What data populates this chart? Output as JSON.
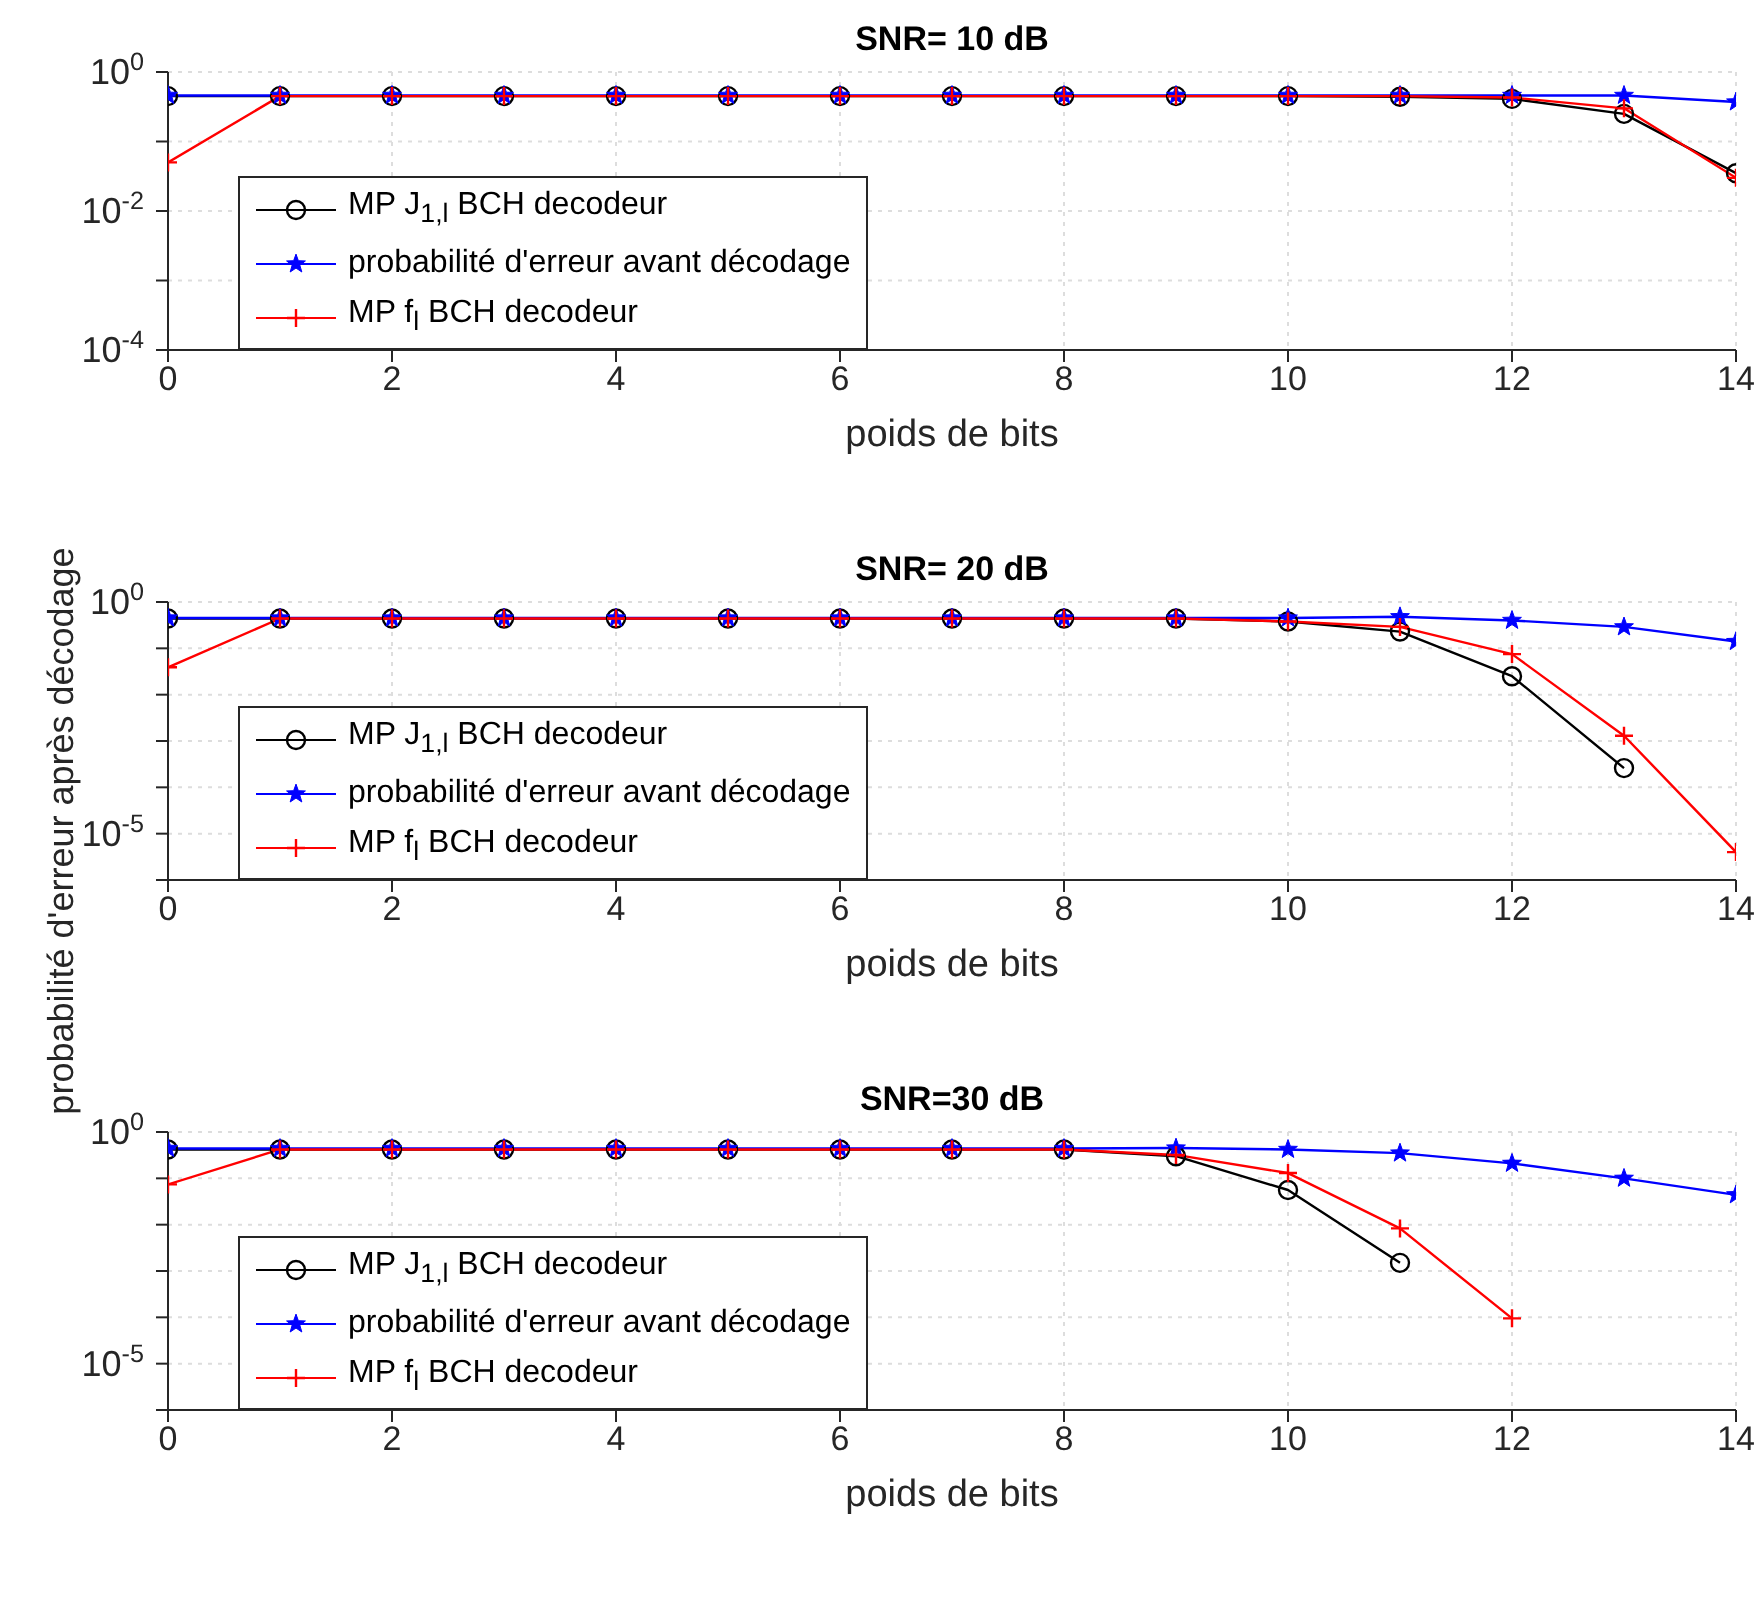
{
  "chart_data": [
    {
      "type": "line",
      "title": "SNR= 10 dB",
      "xlabel": "poids de bits",
      "x": [
        0,
        1,
        2,
        3,
        4,
        5,
        6,
        7,
        8,
        9,
        10,
        11,
        12,
        13,
        14
      ],
      "log": true,
      "grid": true,
      "legend": "bottom left",
      "line_style": "solid",
      "xlim": [
        0,
        14
      ],
      "xticks": [
        0,
        2,
        4,
        6,
        8,
        10,
        12,
        14
      ],
      "ylim": [
        0.0001,
        1
      ],
      "yticks": [
        {
          "value": 0.0001,
          "label": "10$^{-4}$"
        },
        {
          "value": 0.001,
          "label": null
        },
        {
          "value": 0.01,
          "label": "10$^{-2}$"
        },
        {
          "value": 0.1,
          "label": null
        },
        {
          "value": 1,
          "label": "10$^{0}$"
        }
      ],
      "series": [
        {
          "name": "MP J$_{1,l}$ BCH decodeur",
          "color": "#000000",
          "marker": "circle",
          "values": [
            0.45,
            0.45,
            0.45,
            0.45,
            0.45,
            0.45,
            0.45,
            0.45,
            0.45,
            0.45,
            0.45,
            0.44,
            0.41,
            0.25,
            0.035
          ]
        },
        {
          "name": "probabilité d'erreur avant décodage",
          "color": "#0000ff",
          "marker": "star",
          "values": [
            0.46,
            0.46,
            0.46,
            0.46,
            0.46,
            0.46,
            0.46,
            0.46,
            0.46,
            0.46,
            0.46,
            0.46,
            0.46,
            0.46,
            0.37
          ]
        },
        {
          "name": "MP f$_{l}$ BCH decodeur",
          "color": "#ff0000",
          "marker": "cross",
          "values": [
            0.05,
            0.45,
            0.45,
            0.45,
            0.45,
            0.45,
            0.45,
            0.45,
            0.45,
            0.45,
            0.45,
            0.45,
            0.43,
            0.3,
            0.03
          ]
        }
      ]
    },
    {
      "type": "line",
      "title": "SNR= 20 dB",
      "xlabel": "poids de bits",
      "ylabel": "probabilité d'erreur après décodage",
      "x": [
        0,
        1,
        2,
        3,
        4,
        5,
        6,
        7,
        8,
        9,
        10,
        11,
        12,
        13,
        14
      ],
      "log": true,
      "grid": true,
      "legend": "bottom left",
      "line_style": "solid",
      "xlim": [
        0,
        14
      ],
      "xticks": [
        0,
        2,
        4,
        6,
        8,
        10,
        12,
        14
      ],
      "ylim": [
        1e-06,
        1
      ],
      "yticks": [
        {
          "value": 1e-06,
          "label": null
        },
        {
          "value": 1e-05,
          "label": "10$^{-5}$"
        },
        {
          "value": 0.0001,
          "label": null
        },
        {
          "value": 0.001,
          "label": null
        },
        {
          "value": 0.01,
          "label": null
        },
        {
          "value": 0.1,
          "label": null
        },
        {
          "value": 1,
          "label": "10$^{0}$"
        }
      ],
      "series": [
        {
          "name": "MP J$_{1,l}$ BCH decodeur",
          "color": "#000000",
          "marker": "circle",
          "values": [
            0.44,
            0.44,
            0.44,
            0.44,
            0.44,
            0.44,
            0.44,
            0.44,
            0.44,
            0.44,
            0.38,
            0.23,
            0.025,
            0.00026,
            null
          ]
        },
        {
          "name": "probabilité d'erreur avant décodage",
          "color": "#0000ff",
          "marker": "star",
          "values": [
            0.45,
            0.45,
            0.45,
            0.45,
            0.45,
            0.45,
            0.45,
            0.45,
            0.45,
            0.45,
            0.45,
            0.48,
            0.4,
            0.29,
            0.14
          ]
        },
        {
          "name": "MP f$_{l}$ BCH decodeur",
          "color": "#ff0000",
          "marker": "cross",
          "values": [
            0.039,
            0.44,
            0.44,
            0.44,
            0.44,
            0.44,
            0.44,
            0.44,
            0.44,
            0.44,
            0.38,
            0.29,
            0.075,
            0.0013,
            4e-06
          ]
        }
      ]
    },
    {
      "type": "line",
      "title": "SNR=30 dB",
      "xlabel": "poids de bits",
      "x": [
        0,
        1,
        2,
        3,
        4,
        5,
        6,
        7,
        8,
        9,
        10,
        11,
        12,
        13,
        14
      ],
      "log": true,
      "grid": true,
      "legend": "bottom left",
      "line_style": "solid",
      "xlim": [
        0,
        14
      ],
      "xticks": [
        0,
        2,
        4,
        6,
        8,
        10,
        12,
        14
      ],
      "ylim": [
        1e-06,
        1
      ],
      "yticks": [
        {
          "value": 1e-06,
          "label": null
        },
        {
          "value": 1e-05,
          "label": "10$^{-5}$"
        },
        {
          "value": 0.0001,
          "label": null
        },
        {
          "value": 0.001,
          "label": null
        },
        {
          "value": 0.01,
          "label": null
        },
        {
          "value": 0.1,
          "label": null
        },
        {
          "value": 1,
          "label": "10$^{0}$"
        }
      ],
      "series": [
        {
          "name": "MP J$_{1,l}$ BCH decodeur",
          "color": "#000000",
          "marker": "circle",
          "values": [
            0.42,
            0.42,
            0.42,
            0.42,
            0.42,
            0.42,
            0.42,
            0.42,
            0.42,
            0.3,
            0.056,
            0.0015,
            null,
            null,
            null
          ]
        },
        {
          "name": "probabilité d'erreur avant décodage",
          "color": "#0000ff",
          "marker": "star",
          "values": [
            0.44,
            0.44,
            0.44,
            0.44,
            0.44,
            0.44,
            0.44,
            0.44,
            0.44,
            0.45,
            0.42,
            0.35,
            0.21,
            0.1,
            0.044
          ]
        },
        {
          "name": "MP f$_{l}$ BCH decodeur",
          "color": "#ff0000",
          "marker": "cross",
          "values": [
            0.074,
            0.42,
            0.42,
            0.42,
            0.42,
            0.42,
            0.42,
            0.42,
            0.42,
            0.32,
            0.13,
            0.0083,
            9.5e-05,
            null,
            null
          ]
        }
      ]
    }
  ]
}
